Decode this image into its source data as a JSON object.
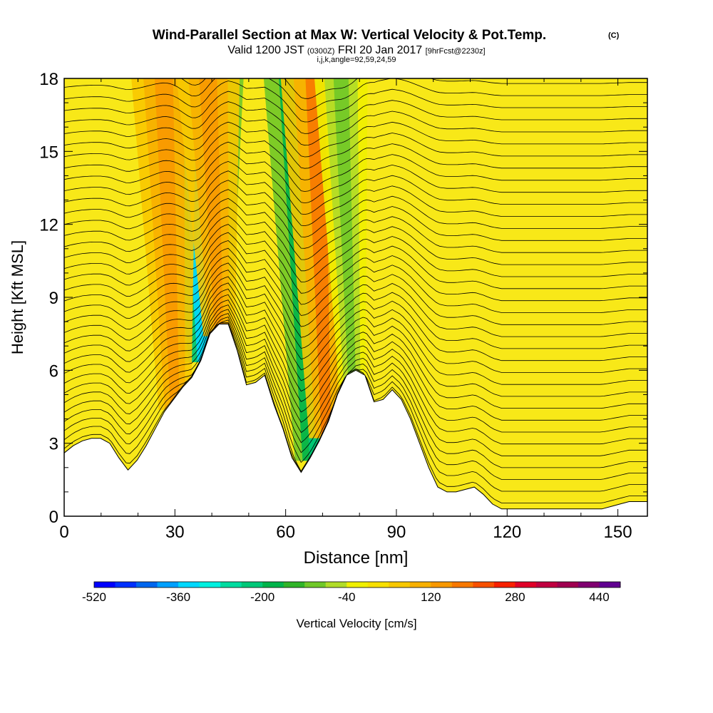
{
  "chart_data": {
    "type": "heatmap",
    "title": "Wind-Parallel Section at Max W: Vertical Velocity & Pot.Temp.",
    "title_mark": "(C)",
    "subtitle": {
      "prefix": "Valid 1200 JST",
      "utc": "(0300Z)",
      "date": "FRI 20 Jan 2017",
      "forecast": "[9hrFcst@2230z]"
    },
    "subtitle2": "i,j,k,angle=92,59,24,59",
    "xlabel": "Distance [nm]",
    "ylabel": "Height [Kft MSL]",
    "xlim": [
      0,
      158
    ],
    "ylim": [
      0,
      18
    ],
    "x_ticks": [
      "0",
      "30",
      "60",
      "90",
      "120",
      "150"
    ],
    "y_ticks": [
      "0",
      "3",
      "6",
      "9",
      "12",
      "15",
      "18"
    ],
    "colorbar": {
      "label": "Vertical Velocity [cm/s]",
      "tick_labels": [
        "-520",
        "-360",
        "-200",
        "-40",
        "120",
        "280",
        "440"
      ],
      "tick_values": [
        -520,
        -360,
        -200,
        -40,
        120,
        280,
        440
      ],
      "range": [
        -520,
        480
      ],
      "colors": [
        "#0000ff",
        "#0030ff",
        "#0066ee",
        "#00a0ff",
        "#00d8ff",
        "#00f0e0",
        "#00dca0",
        "#00c878",
        "#00b44a",
        "#30b428",
        "#70c828",
        "#b0dc28",
        "#f0f000",
        "#f8e000",
        "#f8c800",
        "#f8b000",
        "#f89800",
        "#f87800",
        "#f85000",
        "#f82000",
        "#e00028",
        "#c00040",
        "#a00050",
        "#800070",
        "#600090"
      ]
    },
    "terrain_heights_kft": [
      2.6,
      2.9,
      3.1,
      3.2,
      3.2,
      3.0,
      2.4,
      1.9,
      2.3,
      2.9,
      3.6,
      4.3,
      4.8,
      5.3,
      5.7,
      6.4,
      7.5,
      7.9,
      7.9,
      6.8,
      5.4,
      5.5,
      5.8,
      4.6,
      3.6,
      2.4,
      1.8,
      2.4,
      3.1,
      3.9,
      5.0,
      5.8,
      6.0,
      5.8,
      4.7,
      4.8,
      5.2,
      4.8,
      4.0,
      3.0,
      2.0,
      1.2,
      1.0,
      1.0,
      1.1,
      1.2,
      0.9,
      0.5,
      0.3,
      0.3,
      0.3,
      0.3,
      0.3,
      0.3,
      0.3,
      0.3,
      0.3,
      0.3,
      0.3,
      0.3,
      0.4,
      0.5,
      0.6,
      0.6,
      0.6
    ],
    "features": [
      {
        "kind": "downdraft",
        "x_nm": 38,
        "w_cm_s": -330
      },
      {
        "kind": "downdraft",
        "x_nm": 68,
        "w_cm_s": -230
      },
      {
        "kind": "updraft",
        "x_nm": 30,
        "w_cm_s": 150
      },
      {
        "kind": "updraft",
        "x_nm": 42,
        "w_cm_s": 140
      },
      {
        "kind": "updraft",
        "x_nm": 71,
        "w_cm_s": 170
      },
      {
        "kind": "downdraft",
        "x_nm": 78,
        "w_cm_s": -90
      }
    ],
    "theta_contours": {
      "count": 36,
      "interval_K": 2
    }
  }
}
